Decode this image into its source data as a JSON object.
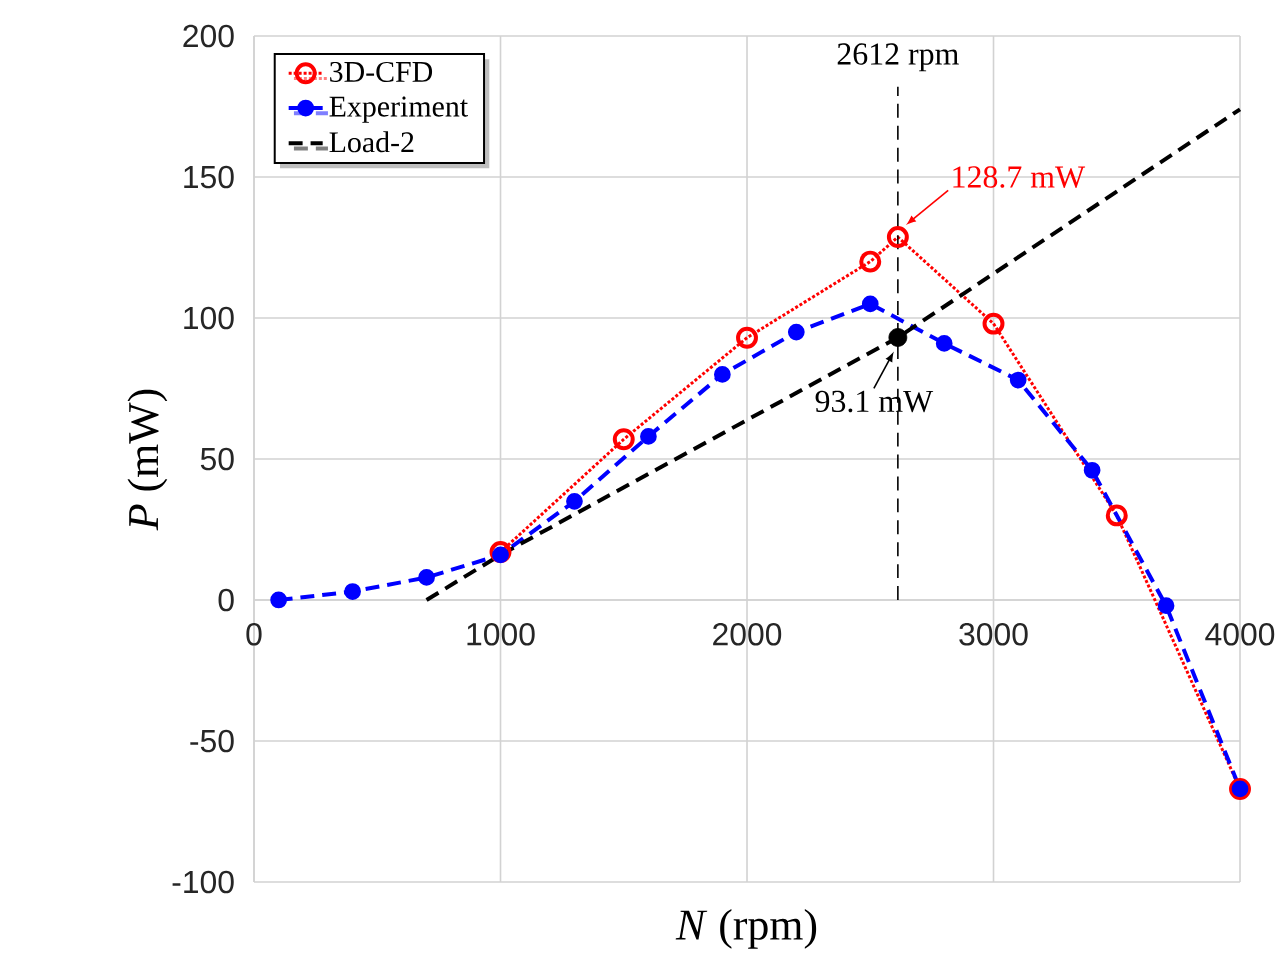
{
  "chart_data": {
    "type": "line",
    "xlabel": "*N* (rpm)",
    "ylabel": "*P* (mW)",
    "series": [
      {
        "name": "3D-CFD",
        "color": "#ff0000",
        "marker": "circle",
        "line_style": "dotted",
        "x": [
          1000,
          1500,
          2000,
          2500,
          2612,
          3000,
          3500,
          4000
        ],
        "values": [
          17,
          57,
          93,
          120,
          128.7,
          98,
          30,
          -67
        ]
      },
      {
        "name": "Experiment",
        "color": "#0000ff",
        "marker": "circle",
        "line_style": "dashed",
        "x": [
          100,
          400,
          700,
          1000,
          1300,
          1600,
          1900,
          2200,
          2500,
          2800,
          3100,
          3400,
          3700,
          4000
        ],
        "values": [
          0,
          3,
          8,
          16,
          35,
          58,
          80,
          95,
          105,
          91,
          78,
          46,
          -2,
          -67
        ]
      },
      {
        "name": "Load-2",
        "color": "#000000",
        "marker": "none",
        "line_style": "dashed",
        "x": [
          700,
          1000,
          2612,
          4000
        ],
        "values": [
          0,
          16,
          93.1,
          174
        ]
      },
      {
        "type": "scatter",
        "color": "#000000",
        "marker": "circle",
        "x": [
          2612
        ],
        "values": [
          93.1
        ]
      }
    ],
    "xlim": [
      0,
      4000
    ],
    "ylim": [
      -100,
      200
    ],
    "xticks": [
      0,
      1000,
      2000,
      3000,
      4000
    ],
    "yticks": [
      -100,
      -50,
      0,
      50,
      100,
      150,
      200
    ],
    "grid": true,
    "legend": "top left",
    "ref_lines": [
      {
        "axis": "x",
        "value": 2612,
        "label": "2612 rpm",
        "color": "#000000",
        "line_style": "dashed"
      }
    ],
    "annotations": [
      {
        "text": "128.7 mW",
        "x": 2612,
        "y": 128.7
      },
      {
        "text": "93.1 mW",
        "x": 2612,
        "y": 93.1
      }
    ]
  }
}
